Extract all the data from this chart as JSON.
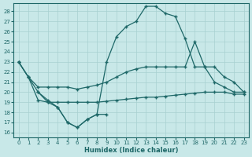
{
  "xlabel": "Humidex (Indice chaleur)",
  "background_color": "#c8e8e8",
  "grid_color": "#a8d0d0",
  "line_color": "#1e6868",
  "xlim": [
    -0.5,
    23.5
  ],
  "ylim": [
    15.5,
    28.8
  ],
  "yticks": [
    16,
    17,
    18,
    19,
    20,
    21,
    22,
    23,
    24,
    25,
    26,
    27,
    28
  ],
  "xticks": [
    0,
    1,
    2,
    3,
    4,
    5,
    6,
    7,
    8,
    9,
    10,
    11,
    12,
    13,
    14,
    15,
    16,
    17,
    18,
    19,
    20,
    21,
    22,
    23
  ],
  "line1_x": [
    0,
    1,
    2,
    3,
    4,
    5,
    6,
    7,
    8,
    9,
    10,
    11,
    12,
    13,
    14,
    15,
    16,
    17,
    18,
    19,
    20,
    21,
    22,
    23
  ],
  "line1_y": [
    23,
    21.5,
    20,
    19,
    18.5,
    17,
    16.5,
    17.3,
    17.8,
    23,
    25.5,
    26.5,
    27,
    28.5,
    28.5,
    27.8,
    27.5,
    25.3,
    22.5,
    22.5,
    21,
    20.5,
    20,
    20
  ],
  "line2_x": [
    0,
    1,
    2,
    3,
    4,
    5,
    6,
    7,
    8,
    9,
    10,
    11,
    12,
    13,
    14,
    15,
    16,
    17,
    18,
    19,
    20,
    21,
    22,
    23
  ],
  "line2_y": [
    23,
    21.5,
    20.5,
    20.5,
    20.5,
    20.5,
    20.3,
    20.5,
    20.7,
    21,
    21.5,
    22,
    22.3,
    22.5,
    22.5,
    22.5,
    22.5,
    22.5,
    25,
    22.5,
    22.5,
    21.5,
    21,
    20
  ],
  "line3_x": [
    0,
    1,
    2,
    3,
    4,
    5,
    6,
    7,
    8,
    9,
    10,
    11,
    12,
    13,
    14,
    15,
    16,
    17,
    18,
    19,
    20,
    21,
    22,
    23
  ],
  "line3_y": [
    23,
    21.5,
    19.2,
    19.0,
    19.0,
    19.0,
    19.0,
    19.0,
    19.0,
    19.1,
    19.2,
    19.3,
    19.4,
    19.5,
    19.5,
    19.6,
    19.7,
    19.8,
    19.9,
    20.0,
    20.0,
    20.0,
    19.8,
    19.8
  ],
  "line4_x": [
    2,
    3,
    4,
    5,
    6,
    7,
    8,
    9
  ],
  "line4_y": [
    20,
    19.2,
    18.5,
    17,
    16.5,
    17.3,
    17.8,
    17.8
  ]
}
